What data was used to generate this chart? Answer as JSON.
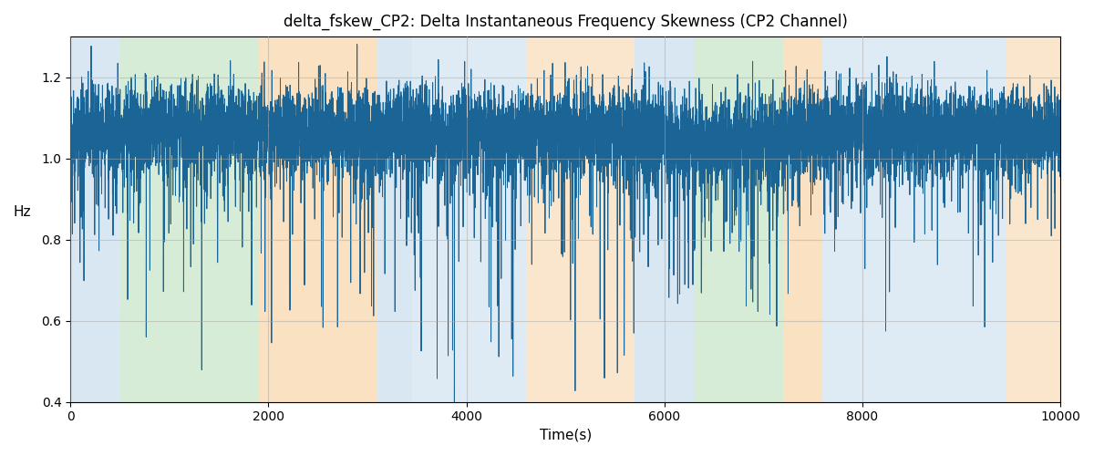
{
  "title": "delta_fskew_CP2: Delta Instantaneous Frequency Skewness (CP2 Channel)",
  "xlabel": "Time(s)",
  "ylabel": "Hz",
  "xlim": [
    0,
    10000
  ],
  "ylim": [
    0.4,
    1.3
  ],
  "yticks": [
    0.4,
    0.6,
    0.8,
    1.0,
    1.2
  ],
  "xticks": [
    0,
    2000,
    4000,
    6000,
    8000,
    10000
  ],
  "bg_regions": [
    {
      "xstart": 0,
      "xend": 500,
      "color": "#b8d4e8",
      "alpha": 0.55
    },
    {
      "xstart": 500,
      "xend": 1900,
      "color": "#b5ddb5",
      "alpha": 0.55
    },
    {
      "xstart": 1900,
      "xend": 3100,
      "color": "#f5c990",
      "alpha": 0.55
    },
    {
      "xstart": 3100,
      "xend": 3450,
      "color": "#b8d4e8",
      "alpha": 0.55
    },
    {
      "xstart": 3450,
      "xend": 4600,
      "color": "#b8d4e8",
      "alpha": 0.45
    },
    {
      "xstart": 4600,
      "xend": 5700,
      "color": "#f5c990",
      "alpha": 0.45
    },
    {
      "xstart": 5700,
      "xend": 6300,
      "color": "#b8d4e8",
      "alpha": 0.55
    },
    {
      "xstart": 6300,
      "xend": 7200,
      "color": "#b5ddb5",
      "alpha": 0.55
    },
    {
      "xstart": 7200,
      "xend": 7600,
      "color": "#f5c990",
      "alpha": 0.55
    },
    {
      "xstart": 7600,
      "xend": 9450,
      "color": "#b8d4e8",
      "alpha": 0.45
    },
    {
      "xstart": 9450,
      "xend": 10000,
      "color": "#f5c990",
      "alpha": 0.45
    }
  ],
  "line_color": "#1a6496",
  "line_width": 0.7,
  "seed": 42,
  "n_points": 10000,
  "base_value": 1.065,
  "noise_std": 0.055,
  "grid_color": "#aaaaaa",
  "grid_alpha": 0.5,
  "title_fontsize": 12,
  "label_fontsize": 11
}
